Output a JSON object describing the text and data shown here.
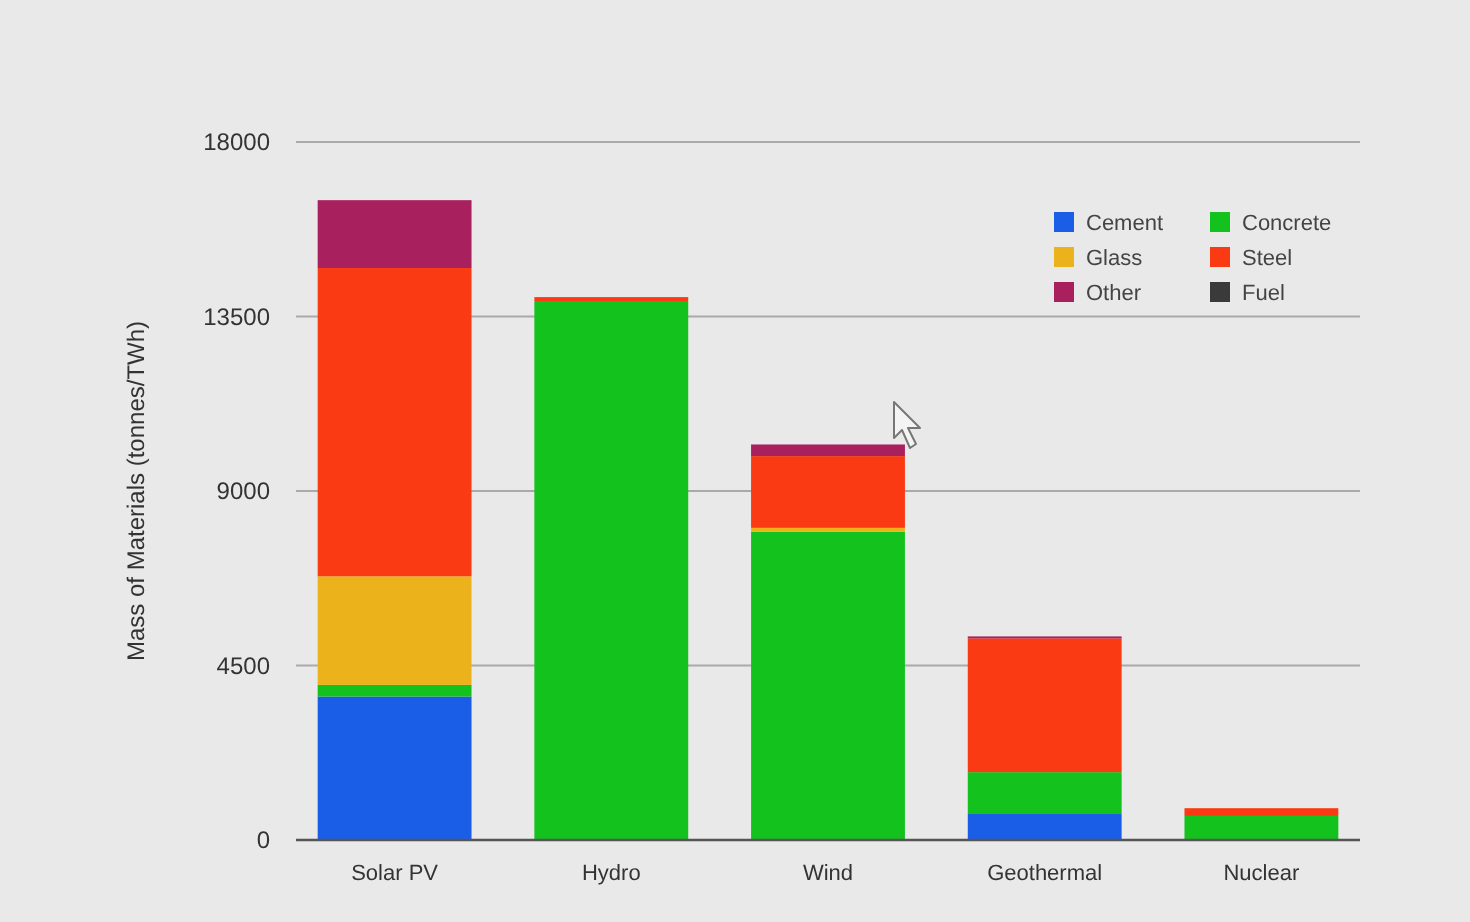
{
  "chart_data": {
    "type": "bar",
    "stacked": true,
    "ylabel": "Mass of Materials (tonnes/TWh)",
    "categories": [
      "Solar PV",
      "Hydro",
      "Wind",
      "Geothermal",
      "Nuclear"
    ],
    "series": [
      {
        "name": "Cement",
        "color": "#1a5ee8",
        "values": [
          3700,
          0,
          0,
          670,
          0
        ]
      },
      {
        "name": "Concrete",
        "color": "#14c21e",
        "values": [
          300,
          13900,
          7950,
          1080,
          620
        ]
      },
      {
        "name": "Glass",
        "color": "#ecb21c",
        "values": [
          2800,
          0,
          100,
          0,
          0
        ]
      },
      {
        "name": "Steel",
        "color": "#fa3a12",
        "values": [
          7950,
          100,
          1850,
          3450,
          200
        ]
      },
      {
        "name": "Other",
        "color": "#a8205e",
        "values": [
          1750,
          0,
          300,
          50,
          0
        ]
      },
      {
        "name": "Fuel",
        "color": "#3a3a3a",
        "values": [
          0,
          0,
          0,
          0,
          0
        ]
      }
    ],
    "ylim": [
      0,
      18000
    ],
    "yticks": [
      0,
      4500,
      9000,
      13500,
      18000
    ],
    "grid": "y",
    "legend": "top right"
  }
}
